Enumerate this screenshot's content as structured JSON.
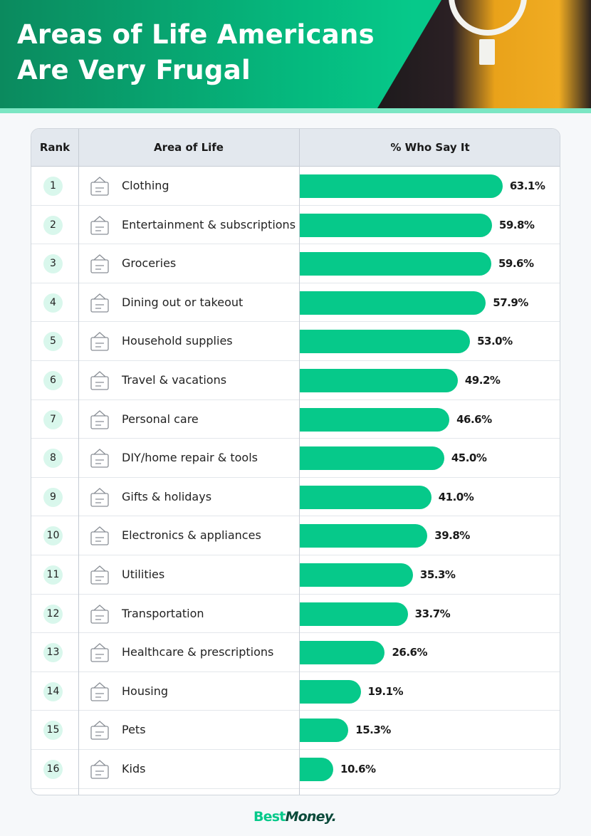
{
  "title_line1": "Areas of Life Americans",
  "title_line2": "Are Very Frugal",
  "colors": {
    "bar": "#06c98a",
    "header_green": "#0b8a5e",
    "rank_badge": "#d9f7ec"
  },
  "chart_data": {
    "type": "bar",
    "orientation": "horizontal",
    "columns": [
      "Rank",
      "Area of Life",
      "% Who Say It"
    ],
    "categories": [
      "Clothing",
      "Entertainment & subscriptions",
      "Groceries",
      "Dining out or takeout",
      "Household supplies",
      "Travel & vacations",
      "Personal care",
      "DIY/home repair & tools",
      "Gifts & holidays",
      "Electronics & appliances",
      "Utilities",
      "Transportation",
      "Healthcare & prescriptions",
      "Housing",
      "Pets",
      "Kids"
    ],
    "ranks": [
      "1",
      "2",
      "3",
      "4",
      "5",
      "6",
      "7",
      "8",
      "9",
      "10",
      "11",
      "12",
      "13",
      "14",
      "15",
      "16"
    ],
    "values": [
      63.1,
      59.8,
      59.6,
      57.9,
      53.0,
      49.2,
      46.6,
      45.0,
      41.0,
      39.8,
      35.3,
      33.7,
      26.6,
      19.1,
      15.3,
      10.6
    ],
    "labels": [
      "63.1%",
      "59.8%",
      "59.6%",
      "57.9%",
      "53.0%",
      "49.2%",
      "46.6%",
      "45.0%",
      "41.0%",
      "39.8%",
      "35.3%",
      "33.7%",
      "26.6%",
      "19.1%",
      "15.3%",
      "10.6%"
    ],
    "icons": [
      "clothing-icon",
      "fitness-icon",
      "grocery-bag-icon",
      "takeout-icon",
      "cleaning-supplies-icon",
      "travel-icon",
      "mirror-icon",
      "home-repair-icon",
      "gift-icon",
      "appliances-icon",
      "faucet-icon",
      "fuel-nozzle-icon",
      "health-heart-icon",
      "house-hand-icon",
      "pets-icon",
      "kids-icon"
    ]
  },
  "logo": {
    "best": "Best",
    "money": "Money."
  }
}
